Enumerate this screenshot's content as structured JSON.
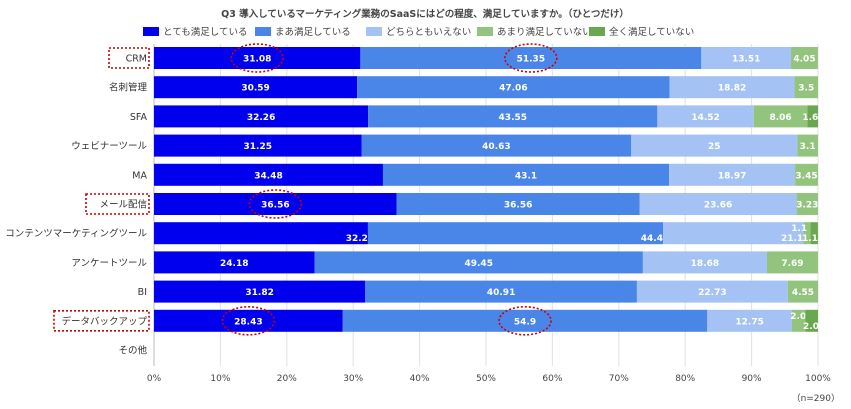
{
  "chart_data": {
    "type": "bar",
    "orientation": "horizontal",
    "stacked": true,
    "title": "Q3 導入しているマーケティング業務のSaaSにはどの程度、満足していますか。（ひとつだけ）",
    "categories": [
      "CRM",
      "名刺管理",
      "SFA",
      "ウェビナーツール",
      "MA",
      "メール配信",
      "コンテンツマーケティングツール",
      "アンケートツール",
      "BI",
      "データバックアップ",
      "その他"
    ],
    "series": [
      {
        "name": "とても満足している",
        "color": "#0000ee",
        "label_color": "#ffffff",
        "values": [
          31.08,
          30.59,
          32.26,
          31.25,
          34.48,
          36.56,
          32.22,
          24.18,
          31.82,
          28.43,
          null
        ],
        "labels": [
          "31.08",
          "30.59",
          "32.26",
          "31.25",
          "34.48",
          "36.56",
          "32.22",
          "24.18",
          "31.82",
          "28.43",
          ""
        ]
      },
      {
        "name": "まあ満足している",
        "color": "#4a86e8",
        "label_color": "#ffffff",
        "values": [
          51.35,
          47.06,
          43.55,
          40.63,
          43.1,
          36.56,
          44.44,
          49.45,
          40.91,
          54.9,
          null
        ],
        "labels": [
          "51.35",
          "47.06",
          "43.55",
          "40.63",
          "43.1",
          "36.56",
          "44.44",
          "49.45",
          "40.91",
          "54.9",
          ""
        ]
      },
      {
        "name": "どちらともいえない",
        "color": "#a4c2f4",
        "label_color": "#ffffff",
        "values": [
          13.51,
          18.82,
          14.52,
          25,
          18.97,
          23.66,
          21.11,
          18.68,
          22.73,
          12.75,
          null
        ],
        "labels": [
          "13.51",
          "18.82",
          "14.52",
          "25",
          "18.97",
          "23.66",
          "21.11",
          "18.68",
          "22.73",
          "12.75",
          ""
        ]
      },
      {
        "name": "あまり満足していない",
        "color": "#93c47d",
        "label_color": "#ffffff",
        "values": [
          4.05,
          3.53,
          8.06,
          3.13,
          3.45,
          3.23,
          1.11,
          7.69,
          4.55,
          2.0,
          null
        ],
        "labels": [
          "4.05",
          "3.5",
          "8.06",
          "3.1",
          "3.45",
          "3.23",
          "1.1",
          "7.69",
          "4.55",
          "2.0",
          ""
        ]
      },
      {
        "name": "全く満足していない",
        "color": "#6aa84f",
        "label_color": "#ffffff",
        "values": [
          0,
          0,
          1.61,
          0,
          0,
          0,
          1.11,
          0,
          0,
          1.96,
          null
        ],
        "labels": [
          "",
          "",
          "1.6",
          "",
          "",
          "",
          "1.1",
          "",
          "",
          "2.0",
          ""
        ]
      }
    ],
    "xlim": [
      0,
      100
    ],
    "xticks": [
      "0%",
      "10%",
      "20%",
      "30%",
      "40%",
      "50%",
      "60%",
      "70%",
      "80%",
      "90%",
      "100%"
    ],
    "legend_position": "top",
    "highlighted_categories": [
      "CRM",
      "メール配信",
      "データバックアップ"
    ],
    "circled_values": [
      {
        "category": "CRM",
        "series": "とても満足している"
      },
      {
        "category": "CRM",
        "series": "まあ満足している"
      },
      {
        "category": "メール配信",
        "series": "とても満足している"
      },
      {
        "category": "データバックアップ",
        "series": "とても満足している"
      },
      {
        "category": "データバックアップ",
        "series": "まあ満足している"
      }
    ],
    "note": "（n=290）",
    "highlight_color": "#cc0000"
  }
}
